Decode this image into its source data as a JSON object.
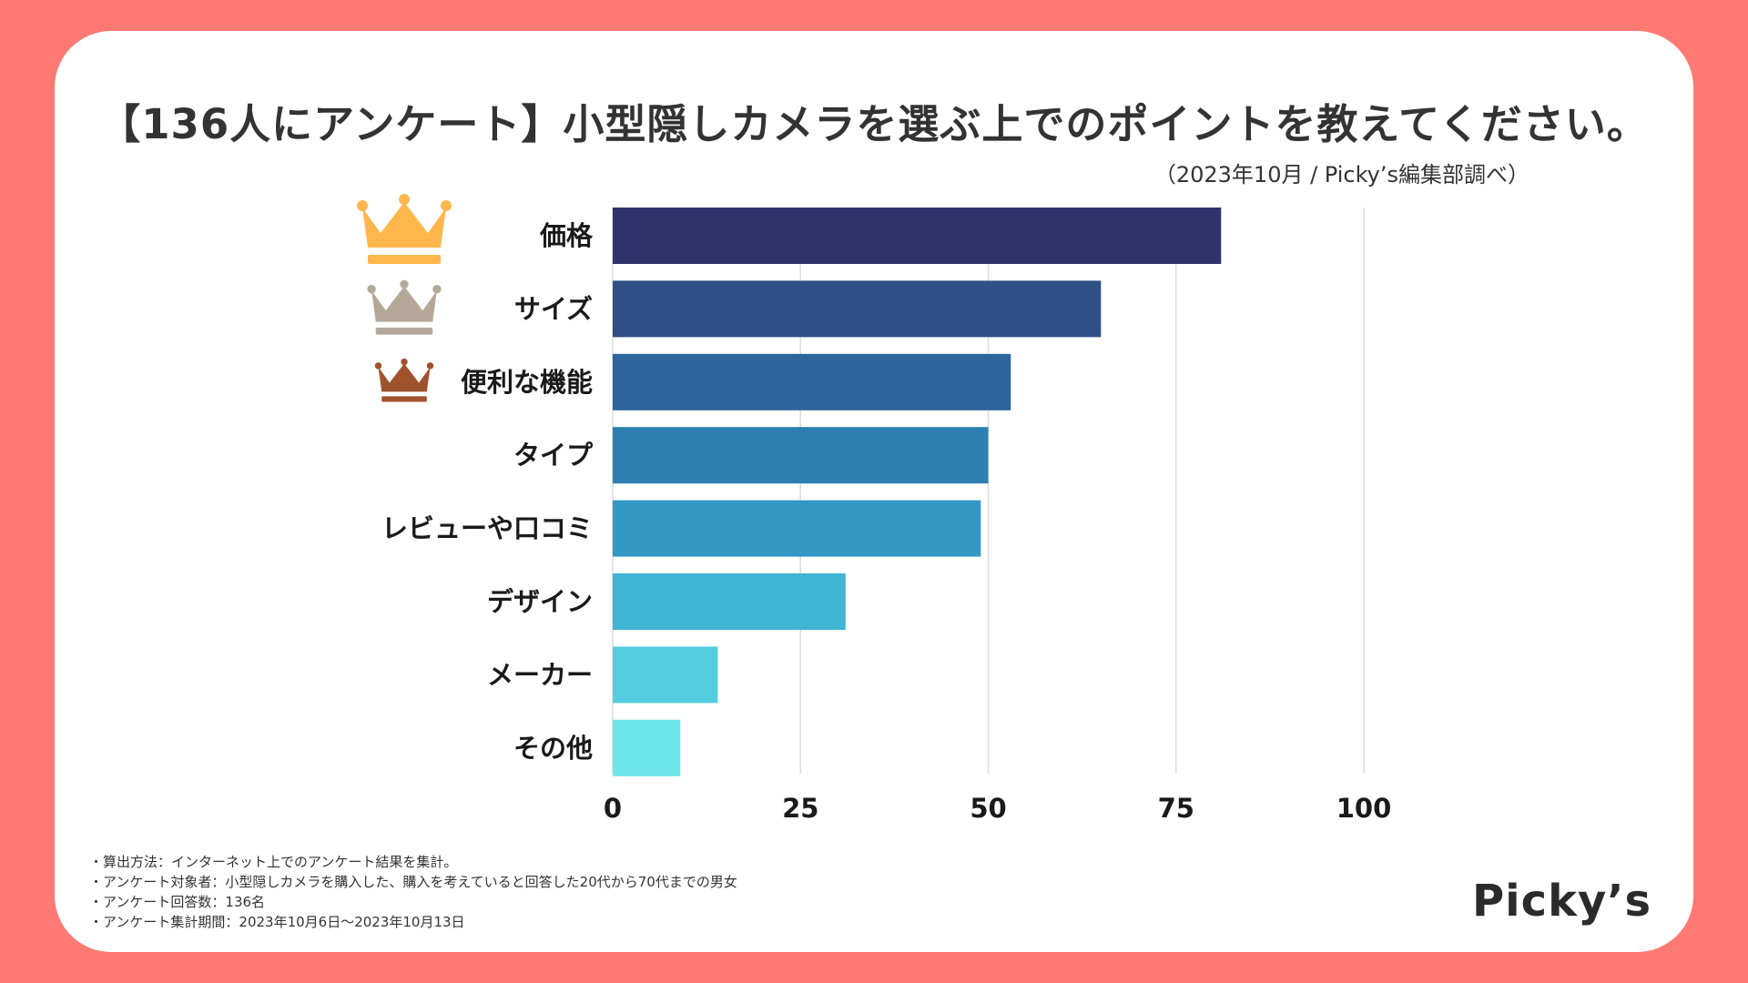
{
  "title": "【136人にアンケート】小型隠しカメラを選ぶ上でのポイントを教えてください。",
  "subtitle": "（2023年10月 / Picky’s編集部調べ）",
  "logo": "Picky’s",
  "notes": [
    "・算出方法：インターネット上でのアンケート結果を集計。",
    "・アンケート対象者：小型隠しカメラを購入した、購入を考えていると回答した20代から70代までの男女",
    "・アンケート回答数：136名",
    "・アンケート集計期間：2023年10月6日〜2023年10月13日"
  ],
  "colors": {
    "background": "#ff7a72",
    "gold": "#ffb74d",
    "silver": "#b5a898",
    "bronze": "#a0522d"
  },
  "chart_data": {
    "type": "bar",
    "orientation": "horizontal",
    "title": "【136人にアンケート】小型隠しカメラを選ぶ上でのポイントを教えてください。",
    "categories": [
      "価格",
      "サイズ",
      "便利な機能",
      "タイプ",
      "レビューや口コミ",
      "デザイン",
      "メーカー",
      "その他"
    ],
    "values": [
      81,
      65,
      53,
      50,
      49,
      31,
      14,
      9
    ],
    "bar_colors": [
      "#30336b",
      "#304f87",
      "#2f649c",
      "#2d7fb3",
      "#3398c6",
      "#3fb4d4",
      "#55cde0",
      "#6be5e8"
    ],
    "xlim": [
      0,
      100
    ],
    "xticks": [
      0,
      25,
      50,
      75,
      100
    ],
    "grid": true,
    "rank_icons": [
      "crown-gold",
      "crown-silver",
      "crown-bronze"
    ]
  }
}
